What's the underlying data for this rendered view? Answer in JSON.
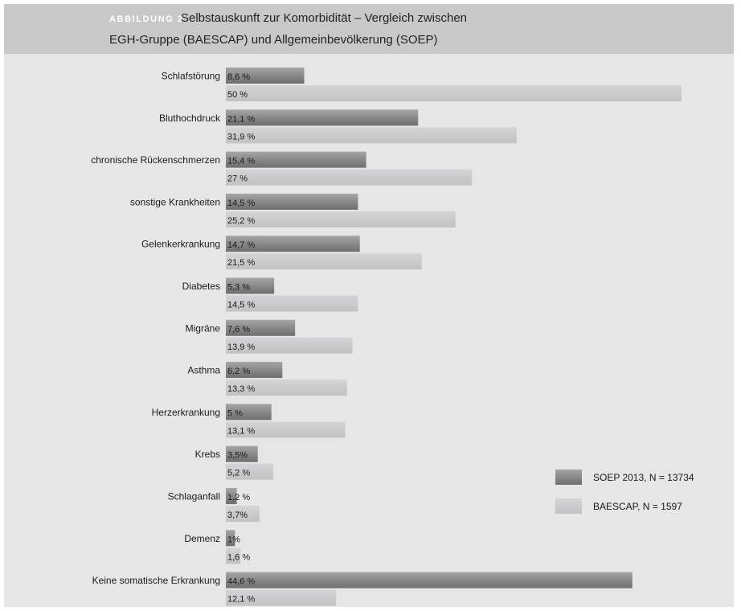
{
  "figure": {
    "label": "ABBILDUNG 2",
    "title_line1": "Selbstauskunft zur Komorbidität – Vergleich zwischen",
    "title_line2": "EGH-Gruppe (BAESCAP) und Allgemeinbevölkerung (SOEP)"
  },
  "chart_data": {
    "type": "bar",
    "orientation": "horizontal",
    "categories": [
      "Schlafstörung",
      "Bluthochdruck",
      "chronische Rückenschmerzen",
      "sonstige Krankheiten",
      "Gelenkerkrankung",
      "Diabetes",
      "Migräne",
      "Asthma",
      "Herzerkrankung",
      "Krebs",
      "Schlaganfall",
      "Demenz",
      "Keine somatische Erkrankung"
    ],
    "series": [
      {
        "name": "SOEP 2013, N = 13734",
        "color": "#8c8c8c",
        "values": [
          8.6,
          21.1,
          15.4,
          14.5,
          14.7,
          5.3,
          7.6,
          6.2,
          5,
          3.5,
          1.2,
          1,
          44.6
        ],
        "labels": [
          "8,6 %",
          "21,1 %",
          "15,4 %",
          "14,5 %",
          "14,7 %",
          "5,3 %",
          "7,6 %",
          "6,2 %",
          "5 %",
          "3,5%",
          "1,2 %",
          "1%",
          "44,6 %"
        ]
      },
      {
        "name": "BAESCAP, N = 1597",
        "color": "#c9c9cb",
        "values": [
          50,
          31.9,
          27,
          25.2,
          21.5,
          14.5,
          13.9,
          13.3,
          13.1,
          5.2,
          3.7,
          1.6,
          12.1
        ],
        "labels": [
          "50 %",
          "31,9 %",
          "27 %",
          "25,2 %",
          "21,5 %",
          "14,5 %",
          "13,9 %",
          "13,3 %",
          "13,1 %",
          "5,2 %",
          "3,7%",
          "1,6 %",
          "12,1 %"
        ]
      }
    ],
    "xlim": [
      0,
      50
    ],
    "grid": false,
    "legend_position": "right"
  }
}
